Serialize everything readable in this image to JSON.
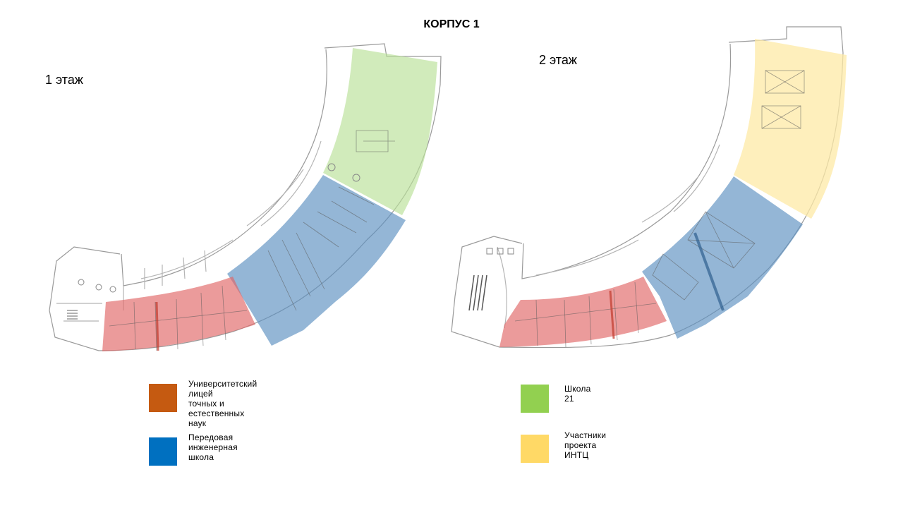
{
  "title": "КОРПУС 1",
  "floors": [
    {
      "label": "1 этаж"
    },
    {
      "label": "2 этаж"
    }
  ],
  "legend": [
    {
      "label": "Университетский  лицей\nточных  и естественных  наук",
      "color": "#c55a11"
    },
    {
      "label": "Передовая  инженерная  школа",
      "color": "#0070c0"
    },
    {
      "label": "Школа 21",
      "color": "#92d050"
    },
    {
      "label": "Участники  проекта  ИНТЦ",
      "color": "#ffd966"
    }
  ],
  "zone_colors": {
    "red": "#e06666",
    "blue": "#5b8fc0",
    "green": "#b8e096",
    "yellow": "#fde9a6"
  }
}
